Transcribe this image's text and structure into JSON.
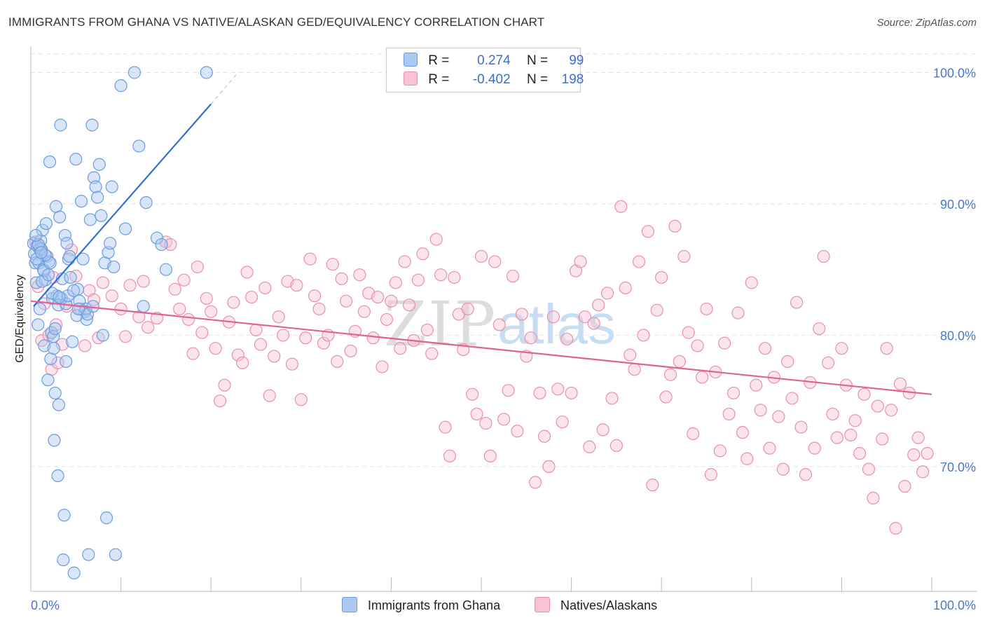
{
  "title": "IMMIGRANTS FROM GHANA VS NATIVE/ALASKAN GED/EQUIVALENCY CORRELATION CHART",
  "source": "Source: ZipAtlas.com",
  "watermark": {
    "zip": "ZIP",
    "atlas": "atlas"
  },
  "legend": {
    "rows": [
      {
        "r_label": "R =",
        "r_value": "0.274",
        "n_label": "N =",
        "n_value": "99",
        "color": "#aac8f0",
        "border": "#6b9be0"
      },
      {
        "r_label": "R =",
        "r_value": "-0.402",
        "n_label": "N =",
        "n_value": "198",
        "color": "#f7c3d3",
        "border": "#e890ac"
      }
    ]
  },
  "bottom_legend": [
    {
      "label": "Immigrants from Ghana",
      "color": "#aac8f0",
      "border": "#6b9be0"
    },
    {
      "label": "Natives/Alaskans",
      "color": "#f7c3d3",
      "border": "#e890ac"
    }
  ],
  "chart_data": {
    "type": "scatter",
    "title": "IMMIGRANTS FROM GHANA VS NATIVE/ALASKAN GED/EQUIVALENCY CORRELATION CHART",
    "xlabel": "",
    "ylabel": "GED/Equivalency",
    "xlim": [
      0,
      100
    ],
    "ylim": [
      60.5,
      102
    ],
    "x_tick_labels": [
      "0.0%",
      "100.0%"
    ],
    "y_ticks": [
      70,
      80,
      90,
      100
    ],
    "y_tick_labels": [
      "70.0%",
      "80.0%",
      "90.0%",
      "100.0%"
    ],
    "grid": true,
    "legend_position": "top-center",
    "series": [
      {
        "name": "Immigrants from Ghana",
        "color": "#6b9be0",
        "fill": "#aac8f0",
        "trend": {
          "x": [
            0.3,
            20.0
          ],
          "y": [
            82.2,
            97.6
          ],
          "dashed_extension_to": [
            23.0,
            100.0
          ],
          "color": "#2f6fd0"
        },
        "points": [
          [
            0.3,
            87.0
          ],
          [
            0.4,
            86.2
          ],
          [
            0.5,
            85.5
          ],
          [
            0.6,
            84.0
          ],
          [
            0.7,
            86.8
          ],
          [
            0.8,
            80.8
          ],
          [
            0.9,
            85.5
          ],
          [
            1.0,
            82.0
          ],
          [
            1.1,
            87.2
          ],
          [
            1.2,
            86.5
          ],
          [
            1.3,
            88.0
          ],
          [
            1.4,
            85.0
          ],
          [
            1.5,
            79.2
          ],
          [
            1.6,
            84.2
          ],
          [
            1.7,
            88.5
          ],
          [
            1.8,
            86.0
          ],
          [
            1.9,
            76.6
          ],
          [
            2.0,
            85.6
          ],
          [
            2.1,
            93.2
          ],
          [
            2.2,
            78.2
          ],
          [
            2.3,
            80.2
          ],
          [
            2.4,
            82.8
          ],
          [
            2.5,
            79.9
          ],
          [
            2.6,
            72.0
          ],
          [
            2.7,
            75.6
          ],
          [
            2.8,
            89.8
          ],
          [
            2.9,
            83.0
          ],
          [
            3.0,
            69.3
          ],
          [
            3.1,
            74.7
          ],
          [
            3.2,
            89.0
          ],
          [
            3.3,
            96.0
          ],
          [
            3.4,
            82.8
          ],
          [
            3.5,
            84.3
          ],
          [
            3.6,
            62.9
          ],
          [
            3.7,
            66.3
          ],
          [
            3.8,
            87.6
          ],
          [
            3.9,
            78.0
          ],
          [
            4.0,
            87.0
          ],
          [
            4.2,
            85.8
          ],
          [
            4.4,
            84.4
          ],
          [
            4.6,
            79.5
          ],
          [
            4.8,
            61.9
          ],
          [
            5.0,
            93.4
          ],
          [
            5.2,
            83.5
          ],
          [
            5.4,
            82.6
          ],
          [
            5.6,
            90.2
          ],
          [
            5.8,
            85.8
          ],
          [
            6.0,
            81.8
          ],
          [
            6.2,
            81.2
          ],
          [
            6.4,
            63.3
          ],
          [
            6.6,
            88.8
          ],
          [
            6.8,
            96.0
          ],
          [
            7.0,
            92.0
          ],
          [
            7.2,
            91.3
          ],
          [
            7.4,
            90.5
          ],
          [
            7.6,
            93.0
          ],
          [
            7.8,
            89.1
          ],
          [
            8.0,
            80.0
          ],
          [
            8.2,
            85.5
          ],
          [
            8.4,
            66.1
          ],
          [
            8.6,
            86.3
          ],
          [
            8.8,
            87.0
          ],
          [
            9.0,
            91.3
          ],
          [
            9.2,
            85.2
          ],
          [
            9.4,
            63.3
          ],
          [
            10.0,
            99.0
          ],
          [
            10.5,
            88.1
          ],
          [
            11.5,
            100.0
          ],
          [
            12.0,
            94.4
          ],
          [
            12.5,
            82.2
          ],
          [
            12.8,
            90.1
          ],
          [
            14.0,
            87.4
          ],
          [
            14.5,
            86.9
          ],
          [
            15.0,
            85.0
          ],
          [
            19.5,
            100.0
          ],
          [
            1.05,
            86.6
          ],
          [
            1.45,
            84.9
          ],
          [
            2.15,
            85.5
          ],
          [
            3.05,
            82.3
          ],
          [
            4.3,
            86.0
          ],
          [
            5.1,
            81.5
          ],
          [
            6.1,
            82.0
          ],
          [
            6.3,
            81.6
          ],
          [
            1.25,
            84.1
          ],
          [
            2.35,
            83.2
          ],
          [
            0.85,
            86.9
          ],
          [
            1.6,
            86.1
          ],
          [
            2.7,
            80.5
          ],
          [
            3.9,
            82.4
          ],
          [
            5.3,
            82.0
          ],
          [
            4.1,
            83.0
          ],
          [
            3.15,
            82.9
          ],
          [
            0.65,
            85.8
          ],
          [
            1.15,
            86.3
          ],
          [
            2.55,
            79.0
          ],
          [
            4.75,
            83.4
          ],
          [
            0.55,
            87.6
          ],
          [
            1.95,
            84.6
          ],
          [
            6.9,
            82.2
          ]
        ]
      },
      {
        "name": "Natives/Alaskans",
        "color": "#e890ac",
        "fill": "#f7c3d3",
        "trend": {
          "x": [
            0.0,
            100.0
          ],
          "y": [
            82.6,
            75.5
          ],
          "color": "#e0628e"
        },
        "points": [
          [
            0.5,
            87.1
          ],
          [
            0.8,
            83.7
          ],
          [
            1.0,
            86.5
          ],
          [
            1.2,
            79.6
          ],
          [
            1.5,
            82.4
          ],
          [
            2.0,
            80.0
          ],
          [
            2.3,
            77.4
          ],
          [
            2.5,
            84.4
          ],
          [
            2.8,
            80.8
          ],
          [
            3.0,
            77.9
          ],
          [
            3.5,
            79.3
          ],
          [
            4.0,
            82.2
          ],
          [
            4.5,
            86.5
          ],
          [
            5.0,
            84.5
          ],
          [
            5.5,
            82.0
          ],
          [
            6.0,
            79.2
          ],
          [
            6.5,
            83.4
          ],
          [
            7.0,
            82.7
          ],
          [
            7.5,
            79.8
          ],
          [
            8.0,
            84.0
          ],
          [
            9.0,
            83.0
          ],
          [
            10.0,
            82.0
          ],
          [
            10.5,
            79.9
          ],
          [
            11.0,
            83.8
          ],
          [
            12.0,
            81.4
          ],
          [
            12.5,
            84.1
          ],
          [
            13.0,
            80.6
          ],
          [
            14.0,
            81.3
          ],
          [
            15.0,
            87.1
          ],
          [
            15.5,
            86.9
          ],
          [
            16.0,
            83.5
          ],
          [
            16.5,
            82.0
          ],
          [
            17.0,
            84.2
          ],
          [
            17.5,
            81.2
          ],
          [
            18.0,
            78.6
          ],
          [
            18.5,
            85.2
          ],
          [
            19.0,
            80.2
          ],
          [
            19.5,
            82.8
          ],
          [
            20.0,
            81.8
          ],
          [
            20.5,
            79.0
          ],
          [
            21.0,
            75.0
          ],
          [
            21.5,
            76.2
          ],
          [
            22.0,
            81.0
          ],
          [
            22.5,
            82.5
          ],
          [
            23.0,
            78.5
          ],
          [
            23.5,
            77.9
          ],
          [
            24.0,
            84.8
          ],
          [
            24.5,
            82.9
          ],
          [
            25.0,
            80.4
          ],
          [
            25.5,
            79.3
          ],
          [
            26.0,
            83.6
          ],
          [
            26.5,
            75.4
          ],
          [
            27.0,
            78.4
          ],
          [
            27.5,
            81.4
          ],
          [
            28.0,
            80.0
          ],
          [
            28.5,
            84.1
          ],
          [
            29.0,
            77.8
          ],
          [
            29.5,
            83.8
          ],
          [
            30.0,
            75.1
          ],
          [
            30.5,
            79.8
          ],
          [
            31.0,
            85.8
          ],
          [
            31.5,
            83.0
          ],
          [
            32.0,
            82.0
          ],
          [
            32.5,
            79.4
          ],
          [
            33.0,
            80.0
          ],
          [
            33.5,
            85.4
          ],
          [
            34.0,
            78.0
          ],
          [
            34.5,
            84.3
          ],
          [
            35.0,
            82.6
          ],
          [
            35.5,
            78.8
          ],
          [
            36.0,
            80.3
          ],
          [
            36.5,
            84.6
          ],
          [
            37.0,
            81.8
          ],
          [
            37.5,
            83.2
          ],
          [
            38.0,
            79.8
          ],
          [
            38.5,
            82.9
          ],
          [
            39.0,
            77.6
          ],
          [
            39.5,
            81.2
          ],
          [
            40.0,
            82.6
          ],
          [
            40.5,
            84.0
          ],
          [
            41.0,
            79.0
          ],
          [
            41.5,
            85.6
          ],
          [
            42.0,
            82.3
          ],
          [
            42.5,
            79.6
          ],
          [
            43.0,
            84.2
          ],
          [
            43.5,
            86.2
          ],
          [
            44.0,
            80.4
          ],
          [
            44.5,
            78.6
          ],
          [
            45.0,
            87.3
          ],
          [
            45.5,
            84.6
          ],
          [
            46.0,
            73.0
          ],
          [
            46.5,
            70.8
          ],
          [
            47.0,
            84.4
          ],
          [
            47.5,
            81.6
          ],
          [
            48.0,
            78.9
          ],
          [
            48.5,
            82.0
          ],
          [
            49.0,
            75.5
          ],
          [
            49.5,
            74.0
          ],
          [
            50.0,
            86.0
          ],
          [
            50.5,
            73.3
          ],
          [
            51.0,
            70.8
          ],
          [
            51.5,
            85.6
          ],
          [
            52.0,
            80.8
          ],
          [
            52.5,
            73.6
          ],
          [
            53.0,
            75.8
          ],
          [
            53.5,
            84.5
          ],
          [
            54.0,
            72.7
          ],
          [
            54.5,
            81.6
          ],
          [
            55.0,
            78.4
          ],
          [
            55.5,
            79.8
          ],
          [
            56.0,
            68.8
          ],
          [
            56.5,
            75.6
          ],
          [
            57.0,
            72.3
          ],
          [
            57.5,
            70.0
          ],
          [
            58.0,
            81.4
          ],
          [
            58.5,
            75.9
          ],
          [
            59.0,
            73.4
          ],
          [
            59.5,
            79.7
          ],
          [
            60.0,
            75.6
          ],
          [
            60.5,
            84.9
          ],
          [
            61.0,
            85.6
          ],
          [
            61.5,
            81.4
          ],
          [
            62.0,
            71.5
          ],
          [
            62.5,
            80.9
          ],
          [
            63.0,
            82.3
          ],
          [
            63.5,
            72.8
          ],
          [
            64.0,
            83.2
          ],
          [
            64.5,
            75.2
          ],
          [
            65.0,
            71.6
          ],
          [
            65.5,
            89.8
          ],
          [
            66.0,
            83.6
          ],
          [
            66.5,
            78.5
          ],
          [
            67.0,
            77.4
          ],
          [
            67.5,
            85.6
          ],
          [
            68.0,
            80.0
          ],
          [
            68.5,
            87.9
          ],
          [
            69.0,
            68.6
          ],
          [
            69.5,
            81.9
          ],
          [
            70.0,
            84.4
          ],
          [
            70.5,
            75.3
          ],
          [
            71.0,
            77.0
          ],
          [
            71.5,
            88.3
          ],
          [
            72.0,
            78.0
          ],
          [
            72.5,
            86.0
          ],
          [
            73.0,
            80.2
          ],
          [
            73.5,
            72.5
          ],
          [
            74.0,
            79.2
          ],
          [
            74.5,
            76.8
          ],
          [
            75.0,
            82.0
          ],
          [
            75.5,
            69.4
          ],
          [
            76.0,
            77.2
          ],
          [
            76.5,
            71.2
          ],
          [
            77.0,
            79.4
          ],
          [
            77.5,
            74.0
          ],
          [
            78.0,
            75.6
          ],
          [
            78.5,
            81.7
          ],
          [
            79.0,
            72.6
          ],
          [
            79.5,
            70.6
          ],
          [
            80.0,
            84.0
          ],
          [
            80.5,
            76.2
          ],
          [
            81.0,
            74.3
          ],
          [
            81.5,
            79.0
          ],
          [
            82.0,
            71.4
          ],
          [
            82.5,
            76.8
          ],
          [
            83.0,
            73.8
          ],
          [
            83.5,
            69.8
          ],
          [
            84.0,
            78.0
          ],
          [
            84.5,
            75.2
          ],
          [
            85.0,
            82.5
          ],
          [
            85.5,
            73.0
          ],
          [
            86.0,
            69.4
          ],
          [
            86.5,
            76.4
          ],
          [
            87.0,
            71.4
          ],
          [
            87.5,
            80.5
          ],
          [
            88.0,
            86.0
          ],
          [
            88.5,
            77.9
          ],
          [
            89.0,
            74.0
          ],
          [
            89.5,
            72.2
          ],
          [
            90.0,
            79.0
          ],
          [
            90.5,
            76.2
          ],
          [
            91.0,
            72.4
          ],
          [
            91.5,
            73.5
          ],
          [
            92.0,
            71.0
          ],
          [
            92.5,
            75.5
          ],
          [
            93.0,
            69.8
          ],
          [
            93.5,
            67.6
          ],
          [
            94.0,
            74.6
          ],
          [
            94.5,
            72.1
          ],
          [
            95.0,
            79.0
          ],
          [
            95.5,
            74.3
          ],
          [
            96.0,
            65.3
          ],
          [
            96.5,
            76.3
          ],
          [
            97.0,
            68.5
          ],
          [
            97.5,
            75.6
          ],
          [
            98.0,
            70.9
          ],
          [
            98.5,
            72.2
          ],
          [
            99.0,
            69.6
          ],
          [
            99.5,
            71.0
          ]
        ]
      }
    ]
  }
}
